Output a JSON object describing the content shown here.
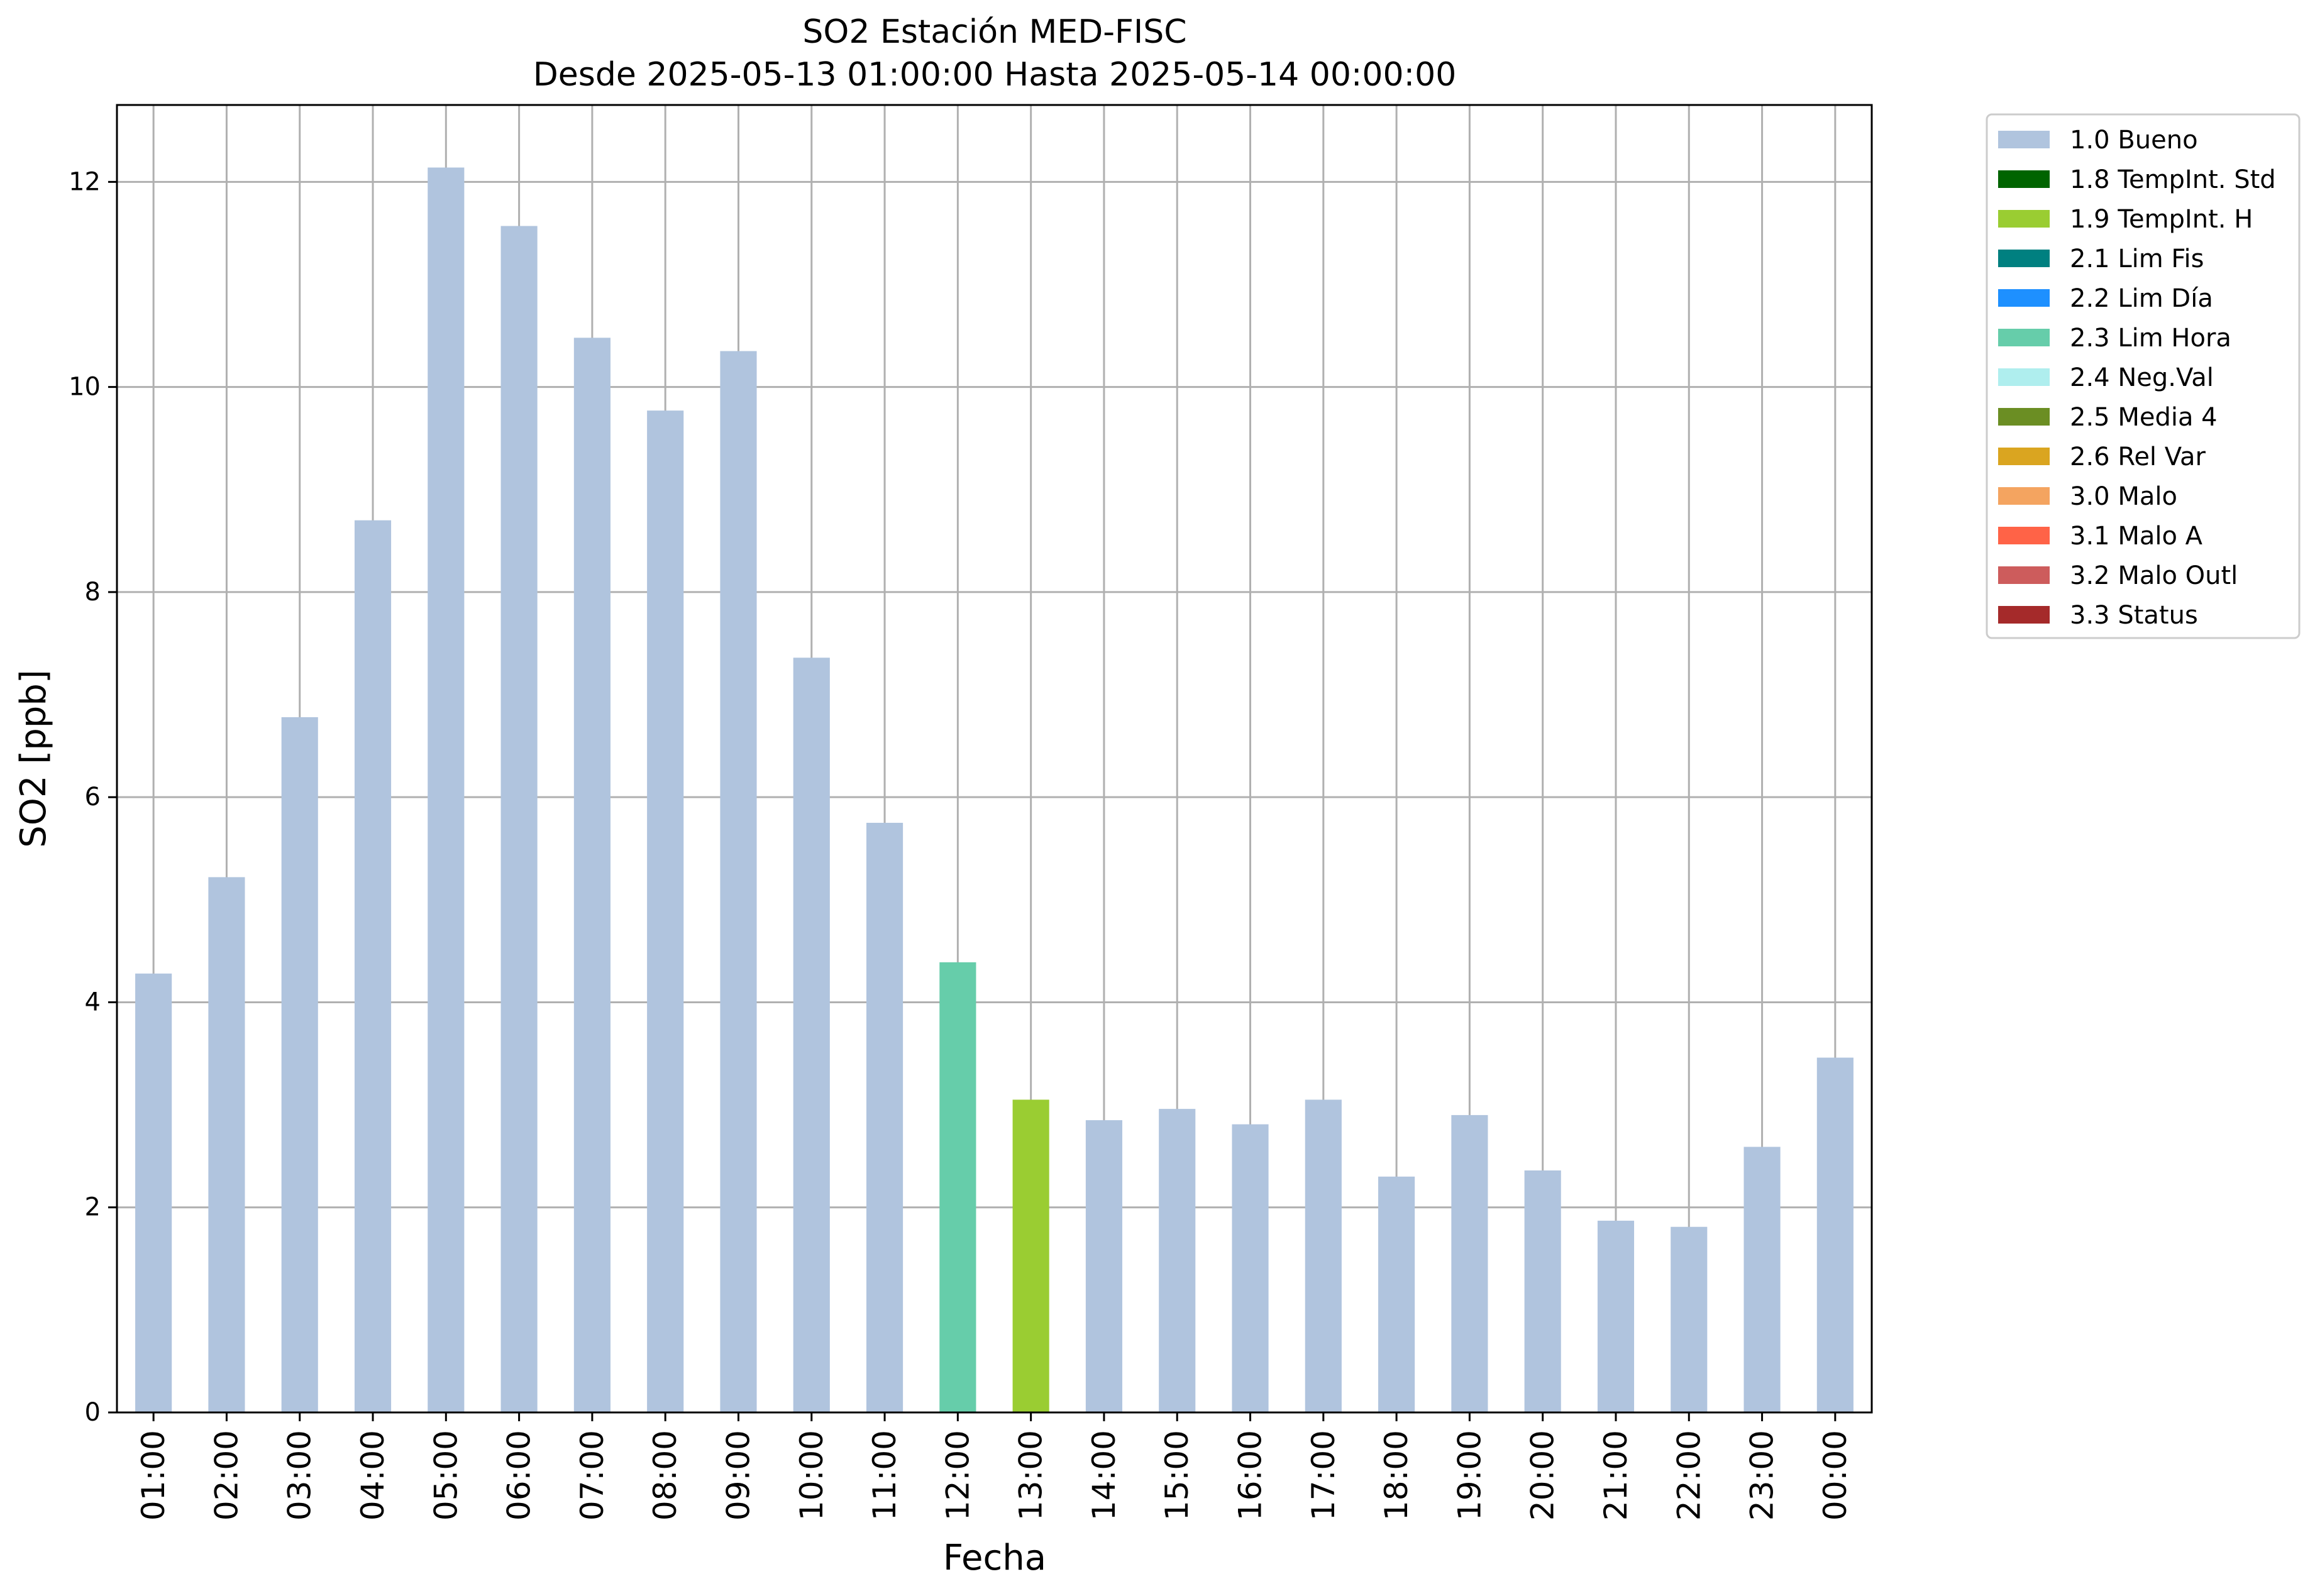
{
  "chart_data": {
    "type": "bar",
    "title": "SO2 Estación MED-FISC",
    "subtitle": "Desde 2025-05-13 01:00:00 Hasta 2025-05-14 00:00:00",
    "xlabel": "Fecha",
    "ylabel": "SO2 [ppb]",
    "ylim": [
      0,
      12.75
    ],
    "yticks": [
      "0",
      "2",
      "4",
      "6",
      "8",
      "10",
      "12"
    ],
    "grid": true,
    "legend_position": "outside-top-right",
    "categories": [
      "01:00",
      "02:00",
      "03:00",
      "04:00",
      "05:00",
      "06:00",
      "07:00",
      "08:00",
      "09:00",
      "10:00",
      "11:00",
      "12:00",
      "13:00",
      "14:00",
      "15:00",
      "16:00",
      "17:00",
      "18:00",
      "19:00",
      "20:00",
      "21:00",
      "22:00",
      "23:00",
      "00:00"
    ],
    "values": [
      4.28,
      5.22,
      6.78,
      8.7,
      12.14,
      11.57,
      10.48,
      9.77,
      10.35,
      7.36,
      5.75,
      4.39,
      3.05,
      2.85,
      2.96,
      2.81,
      3.05,
      2.3,
      2.9,
      2.36,
      1.87,
      1.81,
      2.59,
      3.46
    ],
    "quality_flags": [
      "1.0 Bueno",
      "1.0 Bueno",
      "1.0 Bueno",
      "1.0 Bueno",
      "1.0 Bueno",
      "1.0 Bueno",
      "1.0 Bueno",
      "1.0 Bueno",
      "1.0 Bueno",
      "1.0 Bueno",
      "1.0 Bueno",
      "2.3 Lim Hora",
      "1.9 TempInt. H",
      "1.0 Bueno",
      "1.0 Bueno",
      "1.0 Bueno",
      "1.0 Bueno",
      "1.0 Bueno",
      "1.0 Bueno",
      "1.0 Bueno",
      "1.0 Bueno",
      "1.0 Bueno",
      "1.0 Bueno",
      "1.0 Bueno"
    ],
    "legend": [
      {
        "label": "1.0 Bueno",
        "color": "#b0c4de"
      },
      {
        "label": "1.8 TempInt. Std",
        "color": "#006400"
      },
      {
        "label": "1.9 TempInt. H",
        "color": "#9acd32"
      },
      {
        "label": "2.1 Lim Fis",
        "color": "#008080"
      },
      {
        "label": "2.2 Lim Día",
        "color": "#1e90ff"
      },
      {
        "label": "2.3 Lim Hora",
        "color": "#66cdaa"
      },
      {
        "label": "2.4 Neg.Val",
        "color": "#afeeee"
      },
      {
        "label": "2.5 Media 4",
        "color": "#6b8e23"
      },
      {
        "label": "2.6 Rel Var",
        "color": "#daa520"
      },
      {
        "label": "3.0 Malo",
        "color": "#f4a460"
      },
      {
        "label": "3.1 Malo A",
        "color": "#ff6347"
      },
      {
        "label": "3.2 Malo Outl",
        "color": "#cd5c5c"
      },
      {
        "label": "3.3 Status",
        "color": "#a52a2a"
      }
    ]
  }
}
